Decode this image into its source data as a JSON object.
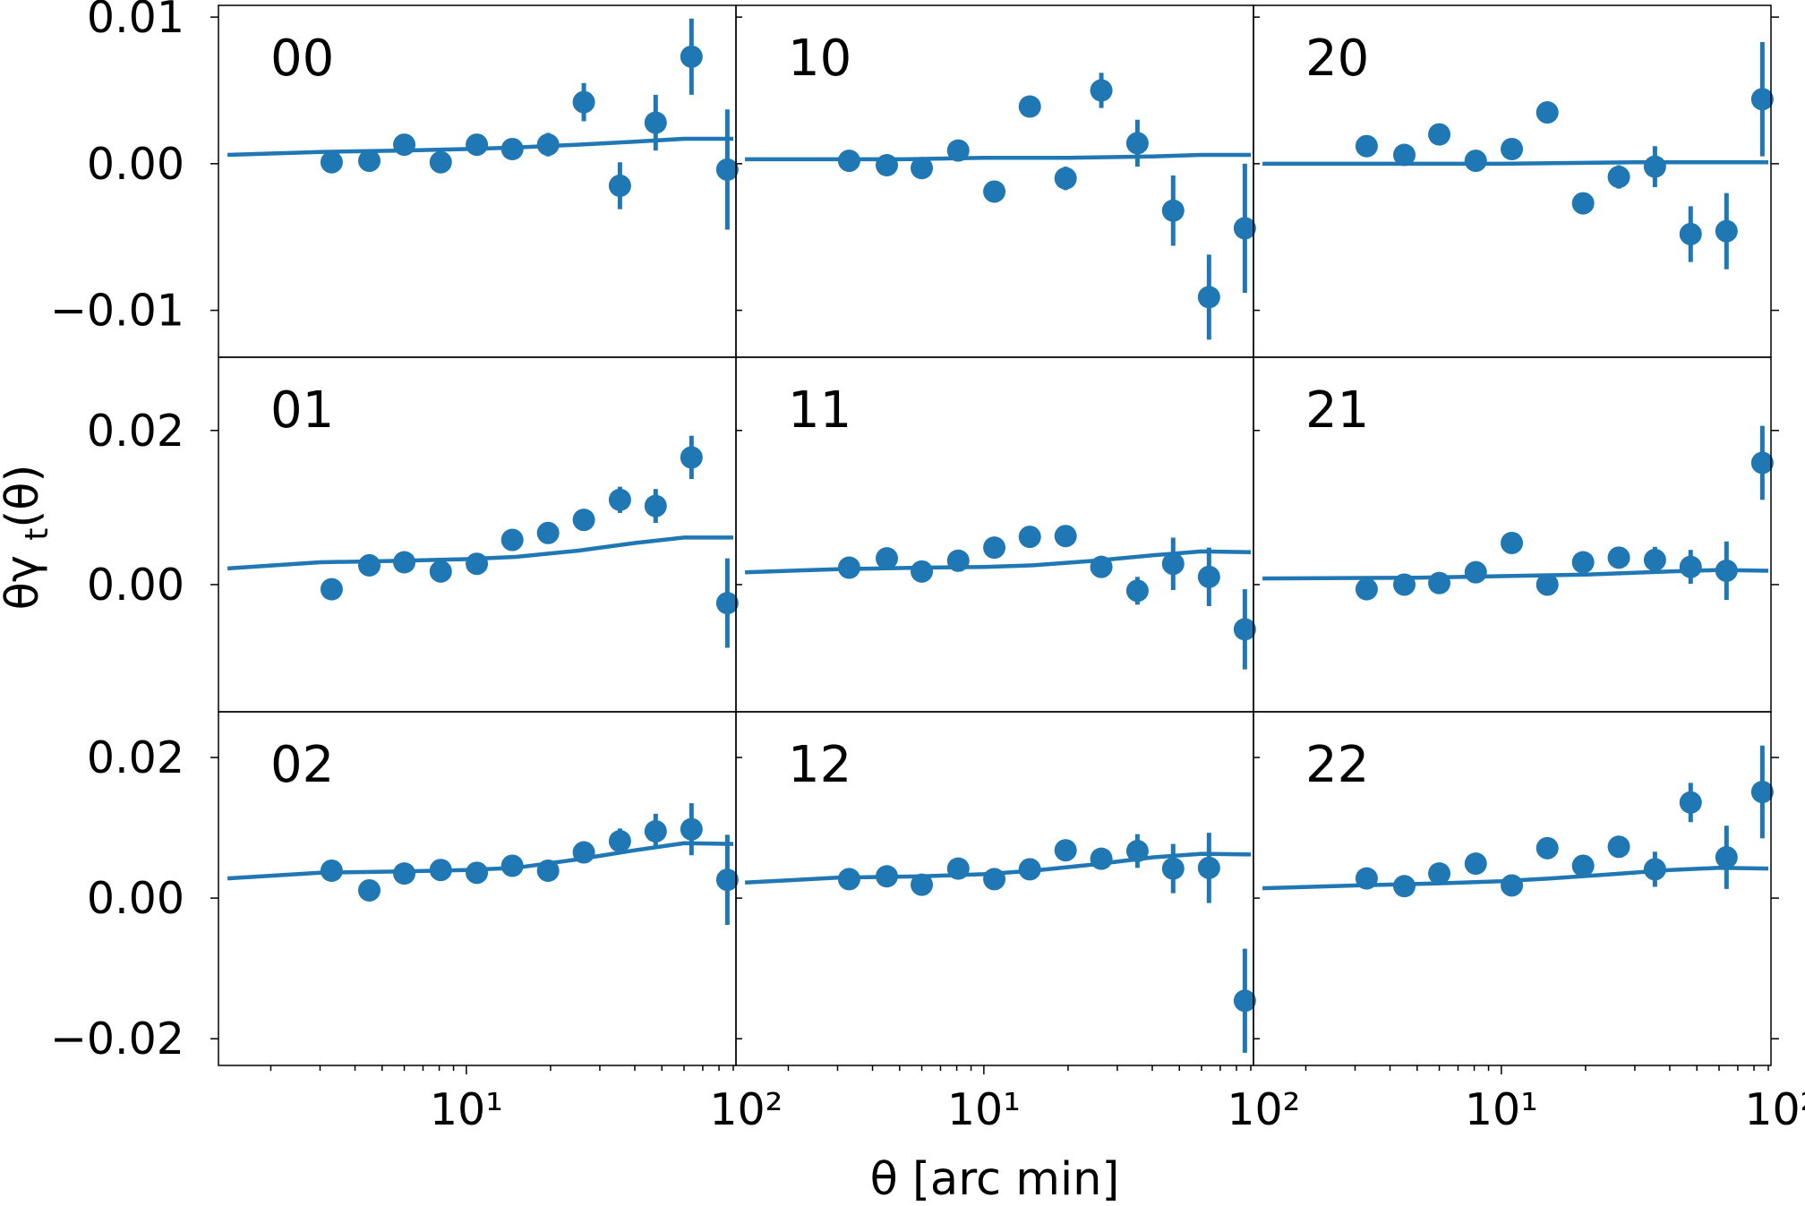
{
  "chart_data": {
    "type": "scatter",
    "xlabel": "θ [arc min]",
    "ylabel": "θγt(θ)",
    "xscale": "log",
    "xlim": [
      1.3,
      92
    ],
    "xticks": [
      {
        "value": 10,
        "label": "10¹"
      },
      {
        "value": 100,
        "label": "10²"
      }
    ],
    "colors": {
      "series": "#1f77b4"
    },
    "rows": [
      {
        "ylim": [
          -0.0132,
          0.0108
        ],
        "yticks": [
          {
            "value": 0.01,
            "label": "0.01"
          },
          {
            "value": 0.0,
            "label": "0.00"
          },
          {
            "value": -0.01,
            "label": "−0.01"
          }
        ]
      },
      {
        "ylim": [
          -0.0165,
          0.0295
        ],
        "yticks": [
          {
            "value": 0.02,
            "label": "0.02"
          },
          {
            "value": 0.0,
            "label": "0.00"
          }
        ]
      },
      {
        "ylim": [
          -0.0238,
          0.0265
        ],
        "yticks": [
          {
            "value": 0.02,
            "label": "0.02"
          },
          {
            "value": 0.0,
            "label": "0.00"
          },
          {
            "value": -0.02,
            "label": "−0.02"
          }
        ]
      }
    ],
    "theta": [
      3.3,
      4.5,
      6.0,
      8.1,
      10.9,
      14.6,
      19.6,
      26.3,
      35.4,
      47.5,
      63.8,
      85.7
    ],
    "panels": [
      {
        "label": "00",
        "row": 0,
        "col": 0,
        "points": [
          [
            3.3,
            0.0001,
            0
          ],
          [
            4.5,
            0.0002,
            0
          ],
          [
            6.0,
            0.0013,
            0
          ],
          [
            8.1,
            0.0001,
            0
          ],
          [
            10.9,
            0.0013,
            0
          ],
          [
            14.6,
            0.001,
            0
          ],
          [
            19.6,
            0.0013,
            0.0008
          ],
          [
            26.3,
            0.0042,
            0.0013
          ],
          [
            35.4,
            -0.0015,
            0.0016
          ],
          [
            47.5,
            0.0028,
            0.0019
          ],
          [
            63.8,
            0.0073,
            0.0026
          ],
          [
            85.7,
            -0.0004,
            0.0041
          ]
        ],
        "model": [
          [
            1.4,
            0.0006
          ],
          [
            3,
            0.0008
          ],
          [
            6,
            0.0009
          ],
          [
            10,
            0.001
          ],
          [
            15,
            0.0011
          ],
          [
            25,
            0.0013
          ],
          [
            40,
            0.0015
          ],
          [
            60,
            0.0017
          ],
          [
            90,
            0.0017
          ]
        ]
      },
      {
        "label": "10",
        "row": 0,
        "col": 1,
        "points": [
          [
            3.3,
            0.0002,
            0
          ],
          [
            4.5,
            -0.0001,
            0
          ],
          [
            6.0,
            -0.0003,
            0
          ],
          [
            8.1,
            0.0009,
            0
          ],
          [
            10.9,
            -0.0019,
            0
          ],
          [
            14.6,
            0.0039,
            0
          ],
          [
            19.6,
            -0.001,
            0.0008
          ],
          [
            26.3,
            0.005,
            0.0012
          ],
          [
            35.4,
            0.0014,
            0.0016
          ],
          [
            47.5,
            -0.0032,
            0.0024
          ],
          [
            63.8,
            -0.0091,
            0.0029
          ],
          [
            85.7,
            -0.0044,
            0.0044
          ]
        ],
        "model": [
          [
            1.4,
            0.0003
          ],
          [
            5,
            0.0003
          ],
          [
            10,
            0.0004
          ],
          [
            20,
            0.0004
          ],
          [
            40,
            0.0005
          ],
          [
            60,
            0.0006
          ],
          [
            90,
            0.0006
          ]
        ]
      },
      {
        "label": "20",
        "row": 0,
        "col": 2,
        "points": [
          [
            3.3,
            0.0012,
            0
          ],
          [
            4.5,
            0.0006,
            0
          ],
          [
            6.0,
            0.002,
            0
          ],
          [
            8.1,
            0.0002,
            0
          ],
          [
            10.9,
            0.001,
            0
          ],
          [
            14.6,
            0.0035,
            0
          ],
          [
            19.6,
            -0.0027,
            0
          ],
          [
            26.3,
            -0.0009,
            0.0008
          ],
          [
            35.4,
            -0.0002,
            0.0014
          ],
          [
            47.5,
            -0.0048,
            0.0019
          ],
          [
            63.8,
            -0.0046,
            0.0026
          ],
          [
            85.7,
            0.0044,
            0.0039
          ]
        ],
        "model": [
          [
            1.4,
            0.0
          ],
          [
            10,
            0.0
          ],
          [
            30,
            0.0001
          ],
          [
            90,
            0.0001
          ]
        ]
      },
      {
        "label": "01",
        "row": 1,
        "col": 0,
        "points": [
          [
            3.3,
            -0.0006,
            0
          ],
          [
            4.5,
            0.0025,
            0
          ],
          [
            6.0,
            0.0029,
            0
          ],
          [
            8.1,
            0.0017,
            0
          ],
          [
            10.9,
            0.0027,
            0
          ],
          [
            14.6,
            0.0058,
            0
          ],
          [
            19.6,
            0.0067,
            0.001
          ],
          [
            26.3,
            0.0084,
            0.0014
          ],
          [
            35.4,
            0.011,
            0.0017
          ],
          [
            47.5,
            0.0102,
            0.0022
          ],
          [
            63.8,
            0.0165,
            0.0028
          ],
          [
            85.7,
            -0.0024,
            0.0058
          ]
        ],
        "model": [
          [
            1.4,
            0.0021
          ],
          [
            3,
            0.0029
          ],
          [
            6,
            0.0031
          ],
          [
            10,
            0.0033
          ],
          [
            15,
            0.0036
          ],
          [
            25,
            0.0044
          ],
          [
            40,
            0.0054
          ],
          [
            60,
            0.0061
          ],
          [
            90,
            0.0061
          ]
        ]
      },
      {
        "label": "11",
        "row": 1,
        "col": 1,
        "points": [
          [
            3.3,
            0.0022,
            0
          ],
          [
            4.5,
            0.0034,
            0
          ],
          [
            6.0,
            0.0017,
            0
          ],
          [
            8.1,
            0.0031,
            0
          ],
          [
            10.9,
            0.0048,
            0
          ],
          [
            14.6,
            0.0062,
            0
          ],
          [
            19.6,
            0.0063,
            0.001
          ],
          [
            26.3,
            0.0023,
            0.0014
          ],
          [
            35.4,
            -0.0008,
            0.0018
          ],
          [
            47.5,
            0.0027,
            0.0034
          ],
          [
            63.8,
            0.001,
            0.0038
          ],
          [
            85.7,
            -0.0058,
            0.0052
          ]
        ],
        "model": [
          [
            1.4,
            0.0016
          ],
          [
            3,
            0.002
          ],
          [
            6,
            0.0022
          ],
          [
            10,
            0.0023
          ],
          [
            15,
            0.0025
          ],
          [
            25,
            0.0031
          ],
          [
            40,
            0.0038
          ],
          [
            60,
            0.0043
          ],
          [
            90,
            0.0042
          ]
        ]
      },
      {
        "label": "21",
        "row": 1,
        "col": 2,
        "points": [
          [
            3.3,
            -0.0006,
            0
          ],
          [
            4.5,
            0.0,
            0
          ],
          [
            6.0,
            0.0002,
            0
          ],
          [
            8.1,
            0.0016,
            0
          ],
          [
            10.9,
            0.0054,
            0
          ],
          [
            14.6,
            0.0,
            0
          ],
          [
            19.6,
            0.0029,
            0
          ],
          [
            26.3,
            0.0035,
            0.0014
          ],
          [
            35.4,
            0.0032,
            0.0017
          ],
          [
            47.5,
            0.0023,
            0.0022
          ],
          [
            63.8,
            0.0018,
            0.0038
          ],
          [
            85.7,
            0.0158,
            0.0048
          ]
        ],
        "model": [
          [
            1.4,
            0.0008
          ],
          [
            5,
            0.0009
          ],
          [
            10,
            0.0011
          ],
          [
            20,
            0.0013
          ],
          [
            40,
            0.0017
          ],
          [
            60,
            0.0019
          ],
          [
            90,
            0.0018
          ]
        ]
      },
      {
        "label": "02",
        "row": 2,
        "col": 0,
        "points": [
          [
            3.3,
            0.0039,
            0
          ],
          [
            4.5,
            0.0011,
            0
          ],
          [
            6.0,
            0.0035,
            0
          ],
          [
            8.1,
            0.004,
            0
          ],
          [
            10.9,
            0.0036,
            0
          ],
          [
            14.6,
            0.0046,
            0
          ],
          [
            19.6,
            0.0039,
            0
          ],
          [
            26.3,
            0.0065,
            0.0014
          ],
          [
            35.4,
            0.0081,
            0.0018
          ],
          [
            47.5,
            0.0095,
            0.0025
          ],
          [
            63.8,
            0.0098,
            0.0037
          ],
          [
            85.7,
            0.0026,
            0.0064
          ]
        ],
        "model": [
          [
            1.4,
            0.0028
          ],
          [
            3,
            0.0036
          ],
          [
            6,
            0.0038
          ],
          [
            10,
            0.004
          ],
          [
            15,
            0.0043
          ],
          [
            25,
            0.0055
          ],
          [
            40,
            0.0068
          ],
          [
            60,
            0.0078
          ],
          [
            90,
            0.0077
          ]
        ]
      },
      {
        "label": "12",
        "row": 2,
        "col": 1,
        "points": [
          [
            3.3,
            0.0027,
            0
          ],
          [
            4.5,
            0.0031,
            0
          ],
          [
            6.0,
            0.0019,
            0
          ],
          [
            8.1,
            0.0042,
            0
          ],
          [
            10.9,
            0.0027,
            0
          ],
          [
            14.6,
            0.0041,
            0
          ],
          [
            19.6,
            0.0068,
            0
          ],
          [
            26.3,
            0.0056,
            0.0015
          ],
          [
            35.4,
            0.0067,
            0.0024
          ],
          [
            47.5,
            0.0042,
            0.0035
          ],
          [
            63.8,
            0.0043,
            0.005
          ],
          [
            85.7,
            -0.0146,
            0.0074
          ]
        ],
        "model": [
          [
            1.4,
            0.0022
          ],
          [
            3,
            0.0029
          ],
          [
            6,
            0.0031
          ],
          [
            10,
            0.0034
          ],
          [
            15,
            0.0039
          ],
          [
            25,
            0.0048
          ],
          [
            40,
            0.0058
          ],
          [
            60,
            0.0063
          ],
          [
            90,
            0.0062
          ]
        ]
      },
      {
        "label": "22",
        "row": 2,
        "col": 2,
        "points": [
          [
            3.3,
            0.0028,
            0
          ],
          [
            4.5,
            0.0017,
            0
          ],
          [
            6.0,
            0.0035,
            0
          ],
          [
            8.1,
            0.0049,
            0
          ],
          [
            10.9,
            0.0018,
            0
          ],
          [
            14.6,
            0.0071,
            0
          ],
          [
            19.6,
            0.0046,
            0
          ],
          [
            26.3,
            0.0073,
            0.0014
          ],
          [
            35.4,
            0.0041,
            0.0025
          ],
          [
            47.5,
            0.0136,
            0.0028
          ],
          [
            63.8,
            0.0058,
            0.0045
          ],
          [
            85.7,
            0.0151,
            0.0066
          ]
        ],
        "model": [
          [
            1.4,
            0.0014
          ],
          [
            3,
            0.0018
          ],
          [
            6,
            0.0021
          ],
          [
            10,
            0.0024
          ],
          [
            15,
            0.0028
          ],
          [
            25,
            0.0034
          ],
          [
            40,
            0.004
          ],
          [
            60,
            0.0043
          ],
          [
            90,
            0.0042
          ]
        ]
      }
    ]
  }
}
